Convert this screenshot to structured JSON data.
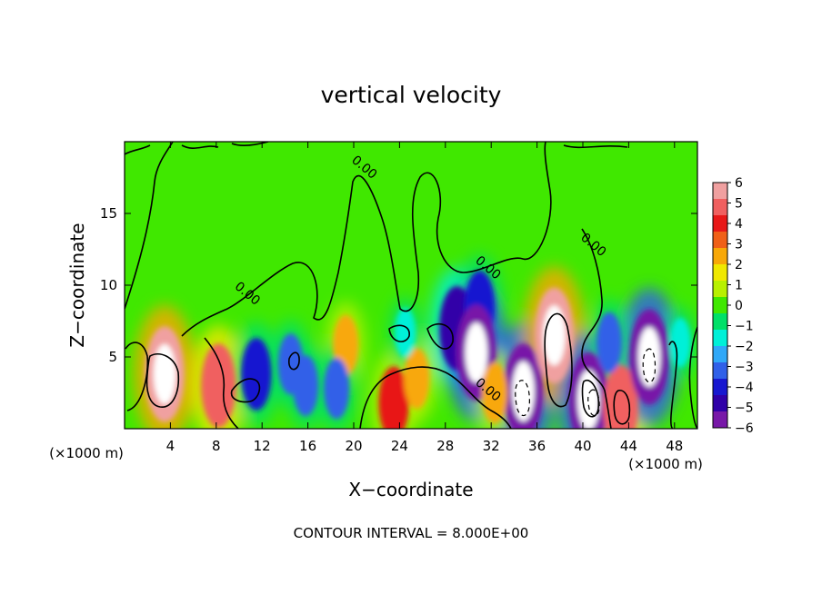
{
  "chart_data": {
    "type": "heatmap",
    "title": "vertical velocity",
    "xlabel": "X−coordinate",
    "ylabel": "Z−coordinate",
    "x_unit_left": "(×1000 m)",
    "x_unit_right": "(×1000 m)",
    "xlim": [
      0,
      50
    ],
    "ylim": [
      0,
      20
    ],
    "xticks": [
      4,
      8,
      12,
      16,
      20,
      24,
      28,
      32,
      36,
      40,
      44,
      48
    ],
    "xtick_labels": [
      "4",
      "8",
      "12",
      "16",
      "20",
      "24",
      "28",
      "32",
      "36",
      "40",
      "44",
      "48"
    ],
    "yticks": [
      5,
      10,
      15
    ],
    "ytick_labels": [
      "5",
      "10",
      "15"
    ],
    "colorbar": {
      "min": -6,
      "max": 6,
      "ticks": [
        6,
        5,
        4,
        3,
        2,
        1,
        0,
        -1,
        -2,
        -3,
        -4,
        -5,
        -6
      ],
      "tick_labels": [
        "6",
        "5",
        "4",
        "3",
        "2",
        "1",
        "0",
        "−1",
        "−2",
        "−3",
        "−4",
        "−5",
        "−6"
      ],
      "colors": [
        "#f0a0a0",
        "#f06060",
        "#e81818",
        "#f06018",
        "#f8a808",
        "#f0e800",
        "#b8f000",
        "#40e800",
        "#00e068",
        "#00f0d8",
        "#30a8f8",
        "#3060e8",
        "#1818d0",
        "#3000a8",
        "#7818a8"
      ]
    },
    "contour_labels": [
      {
        "text": "0.00",
        "x": 20.7,
        "z": 18.0
      },
      {
        "text": "0.00",
        "x": 10.5,
        "z": 9.2
      },
      {
        "text": "0.00",
        "x": 31.5,
        "z": 11.0
      },
      {
        "text": "0.00",
        "x": 31.5,
        "z": 2.5
      },
      {
        "text": "0.00",
        "x": 40.7,
        "z": 12.6
      }
    ],
    "features": [
      {
        "x": 3.5,
        "z": 3.8,
        "value": 6
      },
      {
        "x": 8.2,
        "z": 3.0,
        "value": 5
      },
      {
        "x": 11.5,
        "z": 3.8,
        "value": -4
      },
      {
        "x": 14.5,
        "z": 4.5,
        "value": -3
      },
      {
        "x": 15.8,
        "z": 3.0,
        "value": -3
      },
      {
        "x": 19.3,
        "z": 5.8,
        "value": 3
      },
      {
        "x": 18.5,
        "z": 2.8,
        "value": -3
      },
      {
        "x": 23.5,
        "z": 1.8,
        "value": 4
      },
      {
        "x": 25.5,
        "z": 3.5,
        "value": 3
      },
      {
        "x": 29.0,
        "z": 7.0,
        "value": -5
      },
      {
        "x": 31.0,
        "z": 8.5,
        "value": -4
      },
      {
        "x": 30.7,
        "z": 5.3,
        "value": -6
      },
      {
        "x": 34.8,
        "z": 2.6,
        "value": -6
      },
      {
        "x": 32.3,
        "z": 2.5,
        "value": 3
      },
      {
        "x": 37.5,
        "z": 6.5,
        "value": 6
      },
      {
        "x": 40.5,
        "z": 2.0,
        "value": -6
      },
      {
        "x": 43.3,
        "z": 1.5,
        "value": 5
      },
      {
        "x": 45.8,
        "z": 5.0,
        "value": -6
      },
      {
        "x": 42.3,
        "z": 6.0,
        "value": -3
      },
      {
        "x": 48.5,
        "z": 6.0,
        "value": -2
      },
      {
        "x": 24.5,
        "z": 6.7,
        "value": -2
      }
    ],
    "grid": false,
    "legend": "right"
  },
  "footer": {
    "contour_interval": "CONTOUR INTERVAL = 8.000E+00"
  }
}
